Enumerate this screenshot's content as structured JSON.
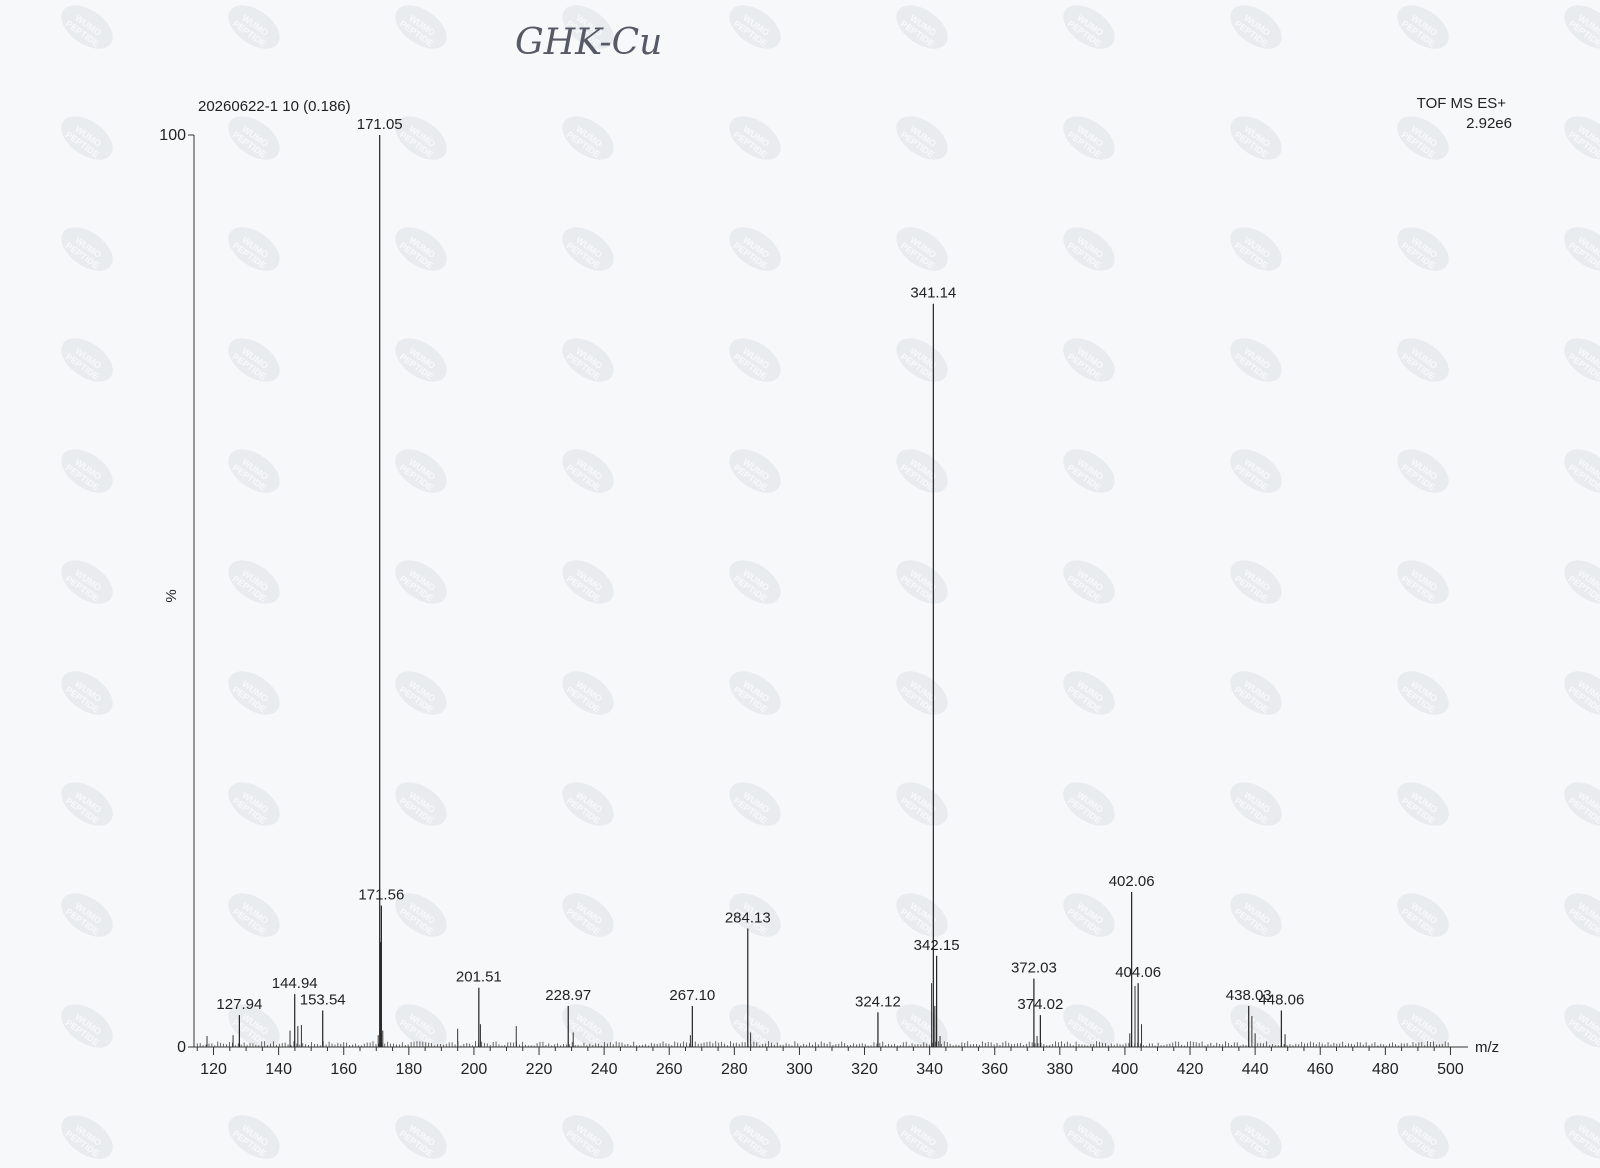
{
  "handwritten_note": "GHK-Cu",
  "spectrum": {
    "sample_label": "20260622-1 10 (0.186)",
    "instrument": "TOF MS ES+",
    "intensity_max": "2.92e6"
  },
  "watermark_text": "WUMO PEPTIDE",
  "chart_data": {
    "type": "bar",
    "xlabel": "m/z",
    "ylabel": "%",
    "xlim": [
      114,
      502
    ],
    "ylim": [
      0,
      100
    ],
    "x_ticks": [
      120,
      140,
      160,
      180,
      200,
      220,
      240,
      260,
      280,
      300,
      320,
      340,
      360,
      380,
      400,
      420,
      440,
      460,
      480,
      500
    ],
    "y_ticks": [
      0,
      100
    ],
    "peaks": [
      {
        "mz": 127.94,
        "intensity": 3.5,
        "label": "127.94"
      },
      {
        "mz": 144.94,
        "intensity": 5.8,
        "label": "144.94"
      },
      {
        "mz": 153.54,
        "intensity": 4.0,
        "label": "153.54"
      },
      {
        "mz": 171.05,
        "intensity": 100,
        "label": "171.05"
      },
      {
        "mz": 171.56,
        "intensity": 15.5,
        "label": "171.56"
      },
      {
        "mz": 201.51,
        "intensity": 6.5,
        "label": "201.51"
      },
      {
        "mz": 228.97,
        "intensity": 4.5,
        "label": "228.97"
      },
      {
        "mz": 267.1,
        "intensity": 4.5,
        "label": "267.10"
      },
      {
        "mz": 284.13,
        "intensity": 13.0,
        "label": "284.13"
      },
      {
        "mz": 324.12,
        "intensity": 3.8,
        "label": "324.12"
      },
      {
        "mz": 341.14,
        "intensity": 81.5,
        "label": "341.14"
      },
      {
        "mz": 342.15,
        "intensity": 10.0,
        "label": "342.15"
      },
      {
        "mz": 372.03,
        "intensity": 7.5,
        "label": "372.03"
      },
      {
        "mz": 374.02,
        "intensity": 3.5,
        "label": "374.02"
      },
      {
        "mz": 402.06,
        "intensity": 17.0,
        "label": "402.06"
      },
      {
        "mz": 404.06,
        "intensity": 7.0,
        "label": "404.06"
      },
      {
        "mz": 438.03,
        "intensity": 4.5,
        "label": "438.03"
      },
      {
        "mz": 448.06,
        "intensity": 4.0,
        "label": "448.06"
      }
    ],
    "minor_peaks": [
      {
        "mz": 118.0,
        "intensity": 1.2
      },
      {
        "mz": 126.0,
        "intensity": 1.3
      },
      {
        "mz": 143.5,
        "intensity": 1.8
      },
      {
        "mz": 145.9,
        "intensity": 2.3
      },
      {
        "mz": 147.0,
        "intensity": 2.4
      },
      {
        "mz": 170.6,
        "intensity": 1.3
      },
      {
        "mz": 171.3,
        "intensity": 11.5
      },
      {
        "mz": 172.0,
        "intensity": 1.8
      },
      {
        "mz": 195.0,
        "intensity": 2.0
      },
      {
        "mz": 202.0,
        "intensity": 2.5
      },
      {
        "mz": 213.0,
        "intensity": 2.3
      },
      {
        "mz": 230.5,
        "intensity": 1.6
      },
      {
        "mz": 266.5,
        "intensity": 1.3
      },
      {
        "mz": 285.0,
        "intensity": 1.6
      },
      {
        "mz": 340.6,
        "intensity": 7.0
      },
      {
        "mz": 341.6,
        "intensity": 4.5
      },
      {
        "mz": 343.2,
        "intensity": 1.2
      },
      {
        "mz": 373.0,
        "intensity": 1.2
      },
      {
        "mz": 401.5,
        "intensity": 1.5
      },
      {
        "mz": 403.1,
        "intensity": 6.7
      },
      {
        "mz": 405.1,
        "intensity": 2.5
      },
      {
        "mz": 439.0,
        "intensity": 3.4
      },
      {
        "mz": 440.0,
        "intensity": 1.5
      },
      {
        "mz": 449.2,
        "intensity": 1.4
      }
    ]
  }
}
